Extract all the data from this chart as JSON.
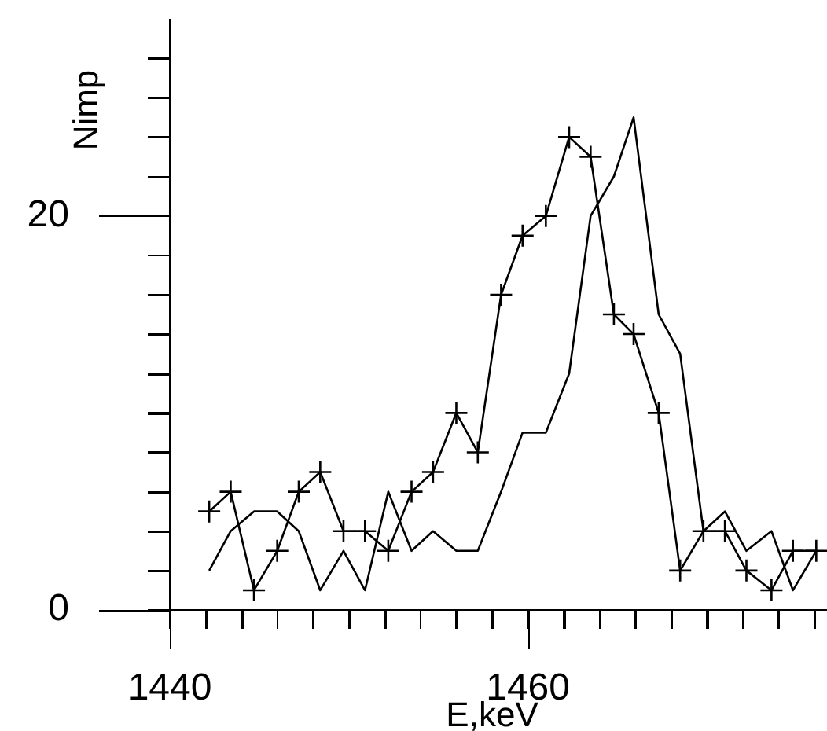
{
  "chart_data": {
    "type": "line",
    "xlabel": "E,keV",
    "ylabel": "Nimp",
    "x": [
      1442.2,
      1443.4,
      1444.7,
      1446.0,
      1447.2,
      1448.4,
      1449.7,
      1450.9,
      1452.2,
      1453.5,
      1454.7,
      1456.0,
      1457.2,
      1458.5,
      1459.7,
      1461.0,
      1462.3,
      1463.5,
      1464.8,
      1465.9,
      1467.3,
      1468.5,
      1469.8,
      1471.0,
      1472.2,
      1473.6,
      1474.8,
      1476.1
    ],
    "series": [
      {
        "color": "#000000",
        "marker": "cross",
        "values": [
          5,
          6,
          1,
          3,
          6,
          7,
          4,
          4,
          3,
          6,
          7,
          10,
          8,
          16,
          19,
          20,
          24,
          23,
          15,
          14,
          10,
          2,
          4,
          4,
          2,
          1,
          3,
          3
        ]
      },
      {
        "color": "#000000",
        "marker": "none",
        "values": [
          2,
          4,
          5,
          5,
          4,
          1,
          3,
          1,
          6,
          3,
          4,
          3,
          3,
          6,
          9,
          9,
          12,
          20,
          22,
          25,
          15,
          13,
          4,
          5,
          3,
          4,
          1,
          3
        ]
      }
    ],
    "xlim": [
      1440,
      1476.7
    ],
    "xticks": [
      1440,
      {
        "value": 1442,
        "label": null
      },
      {
        "value": 1444,
        "label": null
      },
      {
        "value": 1446,
        "label": null
      },
      {
        "value": 1448,
        "label": null
      },
      {
        "value": 1450,
        "label": null
      },
      {
        "value": 1452,
        "label": null
      },
      {
        "value": 1454,
        "label": null
      },
      {
        "value": 1456,
        "label": null
      },
      {
        "value": 1458,
        "label": null
      },
      1460,
      {
        "value": 1462,
        "label": null
      },
      {
        "value": 1464,
        "label": null
      },
      {
        "value": 1466,
        "label": null
      },
      {
        "value": 1468,
        "label": null
      },
      {
        "value": 1470,
        "label": null
      },
      {
        "value": 1472,
        "label": null
      },
      {
        "value": 1474,
        "label": null
      },
      {
        "value": 1476,
        "label": null
      }
    ],
    "ylim": [
      0,
      30
    ],
    "yticks": [
      0,
      {
        "value": 2,
        "label": null
      },
      {
        "value": 4,
        "label": null
      },
      {
        "value": 6,
        "label": null
      },
      {
        "value": 8,
        "label": null
      },
      {
        "value": 10,
        "label": null
      },
      {
        "value": 12,
        "label": null
      },
      {
        "value": 14,
        "label": null
      },
      {
        "value": 16,
        "label": null
      },
      {
        "value": 18,
        "label": null
      },
      20,
      {
        "value": 22,
        "label": null
      },
      {
        "value": 24,
        "label": null
      },
      {
        "value": 26,
        "label": null
      },
      {
        "value": 28,
        "label": null
      }
    ],
    "grid": false,
    "legend": false
  }
}
